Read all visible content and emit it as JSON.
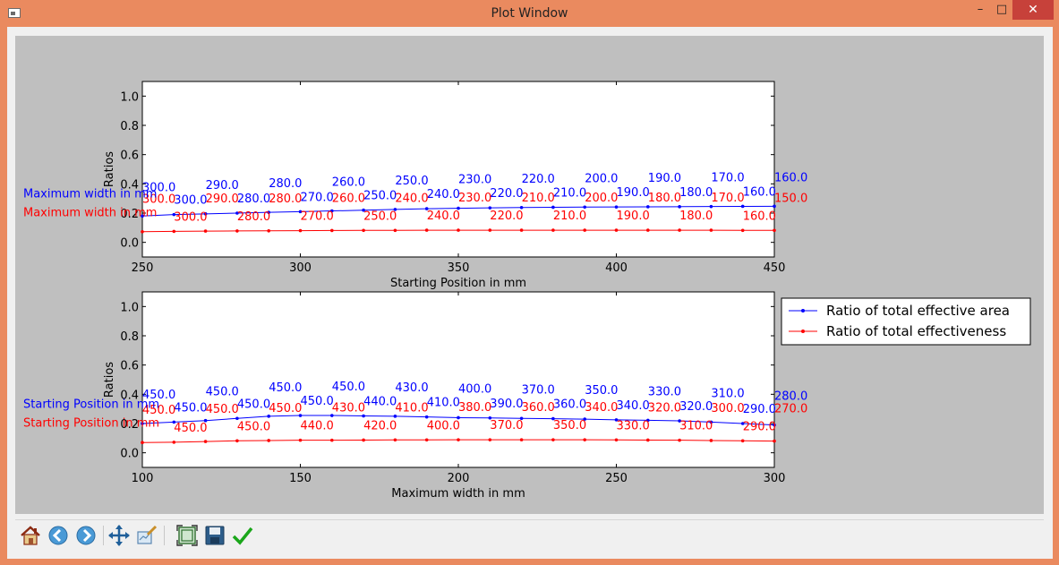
{
  "window": {
    "title": "Plot Window",
    "min_glyph": "–",
    "max_glyph": "□",
    "close_glyph": "✕"
  },
  "toolbar": {
    "buttons": [
      "home-icon",
      "back-arrow-icon",
      "forward-arrow-icon",
      "pan-icon",
      "configure-subplots-icon",
      "edit-axes-icon",
      "save-icon",
      "checkmark-icon"
    ]
  },
  "colors": {
    "blue": "#0000ff",
    "red": "#ff0000",
    "figure_bg": "#bfbfbf",
    "axes_bg": "#ffffff"
  },
  "legend": {
    "entries": [
      {
        "label": "Ratio of total effective area",
        "color": "#0000ff"
      },
      {
        "label": "Ratio of total effectiveness",
        "color": "#ff0000"
      }
    ]
  },
  "chart_data": [
    {
      "type": "line",
      "xlabel": "Starting Position in mm",
      "ylabel": "Ratios",
      "xlim": [
        250,
        450
      ],
      "ylim": [
        -0.1,
        1.1
      ],
      "xticks": [
        250,
        300,
        350,
        400,
        450
      ],
      "yticks": [
        0.0,
        0.2,
        0.4,
        0.6,
        0.8,
        1.0
      ],
      "grid": false,
      "x": [
        250,
        260,
        270,
        280,
        290,
        300,
        310,
        320,
        330,
        340,
        350,
        360,
        370,
        380,
        390,
        400,
        410,
        420,
        430,
        440,
        450
      ],
      "series": [
        {
          "name": "Ratio of total effective area",
          "color": "#0000ff",
          "values": [
            0.18,
            0.19,
            0.195,
            0.2,
            0.205,
            0.21,
            0.215,
            0.22,
            0.225,
            0.23,
            0.233,
            0.236,
            0.238,
            0.24,
            0.241,
            0.242,
            0.243,
            0.244,
            0.245,
            0.246,
            0.247
          ],
          "labels": [
            "300.0",
            "300.0",
            "290.0",
            "280.0",
            "280.0",
            "270.0",
            "260.0",
            "250.0",
            "250.0",
            "240.0",
            "230.0",
            "220.0",
            "220.0",
            "210.0",
            "200.0",
            "190.0",
            "190.0",
            "180.0",
            "170.0",
            "160.0",
            "160.0"
          ]
        },
        {
          "name": "Ratio of total effectiveness",
          "color": "#ff0000",
          "values": [
            0.073,
            0.075,
            0.077,
            0.078,
            0.079,
            0.08,
            0.081,
            0.082,
            0.082,
            0.083,
            0.083,
            0.083,
            0.083,
            0.083,
            0.083,
            0.083,
            0.083,
            0.083,
            0.083,
            0.082,
            0.082
          ],
          "labels": [
            "300.0",
            "300.0",
            "290.0",
            "280.0",
            "280.0",
            "270.0",
            "260.0",
            "250.0",
            "240.0",
            "240.0",
            "230.0",
            "220.0",
            "210.0",
            "210.0",
            "200.0",
            "190.0",
            "180.0",
            "180.0",
            "170.0",
            "160.0",
            "150.0"
          ]
        }
      ],
      "annotations": [
        {
          "text": "Maximum width in mm",
          "color": "#0000ff"
        },
        {
          "text": "Maximum width in mm",
          "color": "#ff0000"
        }
      ]
    },
    {
      "type": "line",
      "xlabel": "Maximum width in mm",
      "ylabel": "Ratios",
      "xlim": [
        100,
        300
      ],
      "ylim": [
        -0.1,
        1.1
      ],
      "xticks": [
        100,
        150,
        200,
        250,
        300
      ],
      "yticks": [
        0.0,
        0.2,
        0.4,
        0.6,
        0.8,
        1.0
      ],
      "grid": false,
      "x": [
        100,
        110,
        120,
        130,
        140,
        150,
        160,
        170,
        180,
        190,
        200,
        210,
        220,
        230,
        240,
        250,
        260,
        270,
        280,
        290,
        300
      ],
      "series": [
        {
          "name": "Ratio of total effective area",
          "color": "#0000ff",
          "values": [
            0.2,
            0.21,
            0.22,
            0.235,
            0.25,
            0.255,
            0.255,
            0.252,
            0.25,
            0.245,
            0.24,
            0.238,
            0.235,
            0.233,
            0.23,
            0.225,
            0.222,
            0.218,
            0.21,
            0.2,
            0.19
          ],
          "labels": [
            "450.0",
            "450.0",
            "450.0",
            "450.0",
            "450.0",
            "450.0",
            "450.0",
            "440.0",
            "430.0",
            "410.0",
            "400.0",
            "390.0",
            "370.0",
            "360.0",
            "350.0",
            "340.0",
            "330.0",
            "320.0",
            "310.0",
            "290.0",
            "280.0"
          ]
        },
        {
          "name": "Ratio of total effectiveness",
          "color": "#ff0000",
          "values": [
            0.07,
            0.072,
            0.077,
            0.082,
            0.084,
            0.086,
            0.086,
            0.087,
            0.088,
            0.088,
            0.089,
            0.089,
            0.089,
            0.089,
            0.089,
            0.088,
            0.087,
            0.086,
            0.084,
            0.082,
            0.08
          ],
          "labels": [
            "450.0",
            "450.0",
            "450.0",
            "450.0",
            "450.0",
            "440.0",
            "430.0",
            "420.0",
            "410.0",
            "400.0",
            "380.0",
            "370.0",
            "360.0",
            "350.0",
            "340.0",
            "330.0",
            "320.0",
            "310.0",
            "300.0",
            "290.0",
            "270.0"
          ]
        }
      ],
      "annotations": [
        {
          "text": "Starting Position in mm",
          "color": "#0000ff"
        },
        {
          "text": "Starting Position in mm",
          "color": "#ff0000"
        }
      ]
    }
  ]
}
